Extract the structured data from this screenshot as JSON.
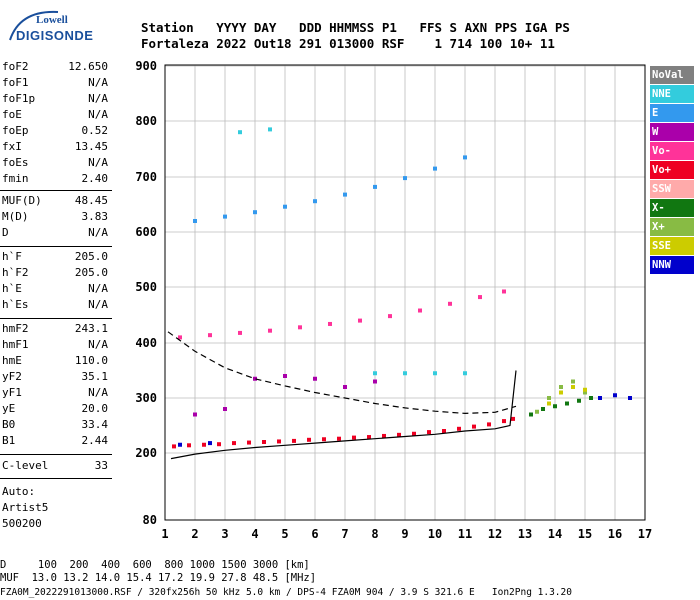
{
  "logo": {
    "line1": "Lowell",
    "line2": "DIGISONDE"
  },
  "header": {
    "row1": "Station   YYYY DAY   DDD HHMMSS P1   FFS S AXN PPS IGA PS",
    "row2": "Fortaleza 2022 Out18 291 013000 RSF    1 714 100 10+ 11"
  },
  "params_group1": [
    {
      "name": "foF2",
      "value": "12.650"
    },
    {
      "name": "foF1",
      "value": "N/A"
    },
    {
      "name": "foF1p",
      "value": "N/A"
    },
    {
      "name": "foE",
      "value": "N/A"
    },
    {
      "name": "foEp",
      "value": "0.52"
    },
    {
      "name": "fxI",
      "value": "13.45"
    },
    {
      "name": "foEs",
      "value": "N/A"
    },
    {
      "name": "fmin",
      "value": "2.40"
    }
  ],
  "params_group2": [
    {
      "name": "MUF(D)",
      "value": "48.45"
    },
    {
      "name": "M(D)",
      "value": "3.83"
    },
    {
      "name": "D",
      "value": "N/A"
    }
  ],
  "params_group3": [
    {
      "name": "h`F",
      "value": "205.0"
    },
    {
      "name": "h`F2",
      "value": "205.0"
    },
    {
      "name": "h`E",
      "value": "N/A"
    },
    {
      "name": "h`Es",
      "value": "N/A"
    }
  ],
  "params_group4": [
    {
      "name": "hmF2",
      "value": "243.1"
    },
    {
      "name": "hmF1",
      "value": "N/A"
    },
    {
      "name": "hmE",
      "value": "110.0"
    },
    {
      "name": "yF2",
      "value": "35.1"
    },
    {
      "name": "yF1",
      "value": "N/A"
    },
    {
      "name": "yE",
      "value": "20.0"
    },
    {
      "name": "B0",
      "value": "33.4"
    },
    {
      "name": "B1",
      "value": "2.44"
    }
  ],
  "clevel": {
    "name": "C-level",
    "value": "33"
  },
  "auto": {
    "line1": "Auto:",
    "line2": "Artist5",
    "line3": "500200"
  },
  "legend": [
    {
      "label": "NoVal",
      "color": "#808080"
    },
    {
      "label": "NNE",
      "color": "#33ccdd"
    },
    {
      "label": "E",
      "color": "#3399ee"
    },
    {
      "label": "W",
      "color": "#aa00aa"
    },
    {
      "label": "Vo-",
      "color": "#ff3399"
    },
    {
      "label": "Vo+",
      "color": "#ee0022"
    },
    {
      "label": "SSW",
      "color": "#ffaaaa"
    },
    {
      "label": "X-",
      "color": "#117711"
    },
    {
      "label": "X+",
      "color": "#88bb44"
    },
    {
      "label": "SSE",
      "color": "#cccc00"
    },
    {
      "label": "NNW",
      "color": "#0000cc"
    }
  ],
  "footer": {
    "line1": "D     100  200  400  600  800 1000 1500 3000 [km]",
    "line2": "MUF  13.0 13.2 14.0 15.4 17.2 19.9 27.8 48.5 [MHz]",
    "line3": "FZA0M_2022291013000.RSF / 320fx256h 50 kHz 5.0 km / DPS-4 FZA0M 904 / 3.9 S 321.6 E   Ion2Png 1.3.20"
  },
  "chart_data": {
    "type": "scatter",
    "title": "",
    "xlabel": "",
    "ylabel": "",
    "xlim": [
      1,
      17
    ],
    "ylim": [
      80,
      900
    ],
    "x_ticks": [
      1,
      2,
      3,
      4,
      5,
      6,
      7,
      8,
      9,
      10,
      11,
      12,
      13,
      14,
      15,
      16,
      17
    ],
    "y_ticks": [
      80,
      200,
      300,
      400,
      500,
      600,
      700,
      800,
      900
    ],
    "grid": true,
    "series": [
      {
        "name": "Vo+",
        "color": "#ee0022",
        "x": [
          1.3,
          1.8,
          2.3,
          2.8,
          3.3,
          3.8,
          4.3,
          4.8,
          5.3,
          5.8,
          6.3,
          6.8,
          7.3,
          7.8,
          8.3,
          8.8,
          9.3,
          9.8,
          10.3,
          10.8,
          11.3,
          11.8,
          12.3,
          12.6
        ],
        "y": [
          212,
          214,
          215,
          216,
          218,
          219,
          220,
          221,
          222,
          224,
          225,
          226,
          228,
          229,
          231,
          233,
          235,
          238,
          240,
          244,
          248,
          252,
          258,
          262
        ]
      },
      {
        "name": "Vo-",
        "color": "#ff3399",
        "x": [
          1.5,
          2.5,
          3.5,
          4.5,
          5.5,
          6.5,
          7.5,
          8.5,
          9.5,
          10.5,
          11.5,
          12.3
        ],
        "y": [
          410,
          414,
          418,
          422,
          428,
          434,
          440,
          448,
          458,
          470,
          482,
          492
        ]
      },
      {
        "name": "E",
        "color": "#3399ee",
        "x": [
          2.0,
          3.0,
          4.0,
          5.0,
          6.0,
          7.0,
          8.0,
          9.0,
          10.0,
          11.0
        ],
        "y": [
          620,
          628,
          636,
          646,
          656,
          668,
          682,
          698,
          715,
          735
        ]
      },
      {
        "name": "W",
        "color": "#aa00aa",
        "x": [
          2.0,
          3.0,
          4.0,
          5.0,
          6.0,
          7.0,
          8.0
        ],
        "y": [
          270,
          280,
          335,
          340,
          335,
          320,
          330
        ]
      },
      {
        "name": "NNE",
        "color": "#33ccdd",
        "x": [
          8.0,
          9.0,
          10.0,
          11.0,
          3.5,
          4.5
        ],
        "y": [
          345,
          345,
          345,
          345,
          780,
          785
        ]
      },
      {
        "name": "X-",
        "color": "#117711",
        "x": [
          13.2,
          13.6,
          14.0,
          14.4,
          14.8,
          15.2
        ],
        "y": [
          270,
          280,
          285,
          290,
          295,
          300
        ]
      },
      {
        "name": "X+",
        "color": "#88bb44",
        "x": [
          13.4,
          13.8,
          14.2,
          14.6,
          15.0
        ],
        "y": [
          275,
          300,
          320,
          330,
          310
        ]
      },
      {
        "name": "SSE",
        "color": "#cccc00",
        "x": [
          13.8,
          14.2,
          14.6,
          15.0
        ],
        "y": [
          290,
          310,
          320,
          315
        ]
      },
      {
        "name": "NNW",
        "color": "#0000cc",
        "x": [
          1.5,
          2.5,
          15.5,
          16.0,
          16.5
        ],
        "y": [
          215,
          218,
          300,
          305,
          300
        ]
      }
    ],
    "profile_solid": {
      "x": [
        1.2,
        2,
        3,
        4,
        5,
        6,
        7,
        8,
        9,
        10,
        11,
        12,
        12.5,
        12.7
      ],
      "y": [
        190,
        198,
        205,
        210,
        214,
        218,
        222,
        226,
        230,
        234,
        240,
        244,
        250,
        350
      ]
    },
    "profile_dashed": {
      "x": [
        1.1,
        2,
        3,
        4,
        5,
        6,
        7,
        8,
        9,
        10,
        11,
        12,
        12.7
      ],
      "y": [
        420,
        385,
        355,
        335,
        322,
        310,
        300,
        290,
        282,
        276,
        272,
        274,
        285
      ]
    }
  }
}
